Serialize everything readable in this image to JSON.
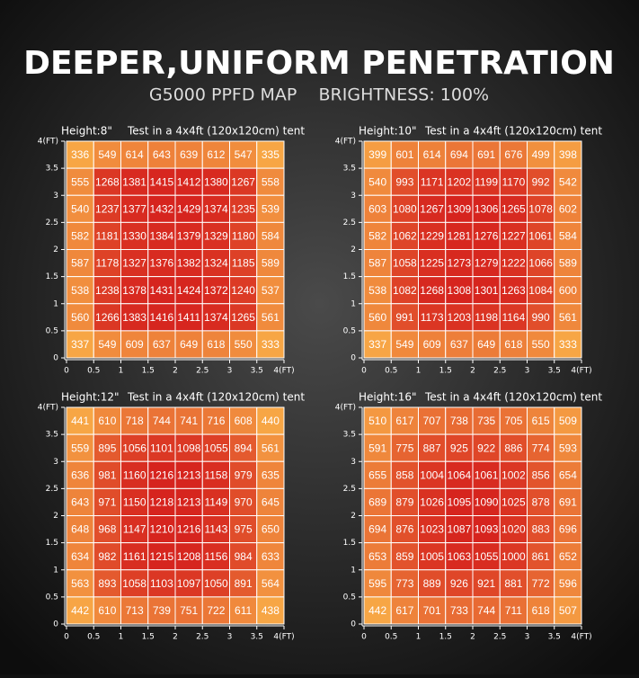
{
  "header": {
    "title": "DEEPER,UNIFORM PENETRATION",
    "subtitle": "G5000 PPFD MAP    BRIGHTNESS: 100%"
  },
  "chart_data": [
    {
      "type": "heatmap",
      "title": "Height:8\"",
      "subtitle": "Test in a 4x4ft (120x120cm) tent",
      "colormap": [
        "#f7a645",
        "#d6241e"
      ],
      "xlim": [
        0,
        4
      ],
      "ylim": [
        0,
        4
      ],
      "xticks": [
        0,
        0.5,
        1,
        1.5,
        2,
        2.5,
        3,
        3.5,
        {
          "value": 4,
          "label": "4(FT)"
        }
      ],
      "yticks": [
        0,
        0.5,
        1,
        1.5,
        2,
        2.5,
        3,
        3.5,
        {
          "value": 4,
          "label": "4(FT)"
        }
      ],
      "values": [
        [
          336,
          549,
          614,
          643,
          639,
          612,
          547,
          335
        ],
        [
          555,
          1268,
          1381,
          1415,
          1412,
          1380,
          1267,
          558
        ],
        [
          540,
          1237,
          1377,
          1432,
          1429,
          1374,
          1235,
          539
        ],
        [
          582,
          1181,
          1330,
          1384,
          1379,
          1329,
          1180,
          584
        ],
        [
          587,
          1178,
          1327,
          1376,
          1382,
          1324,
          1185,
          589
        ],
        [
          538,
          1238,
          1378,
          1431,
          1424,
          1372,
          1240,
          537
        ],
        [
          560,
          1266,
          1383,
          1416,
          1411,
          1374,
          1265,
          561
        ],
        [
          337,
          549,
          609,
          637,
          649,
          618,
          550,
          333
        ]
      ]
    },
    {
      "type": "heatmap",
      "title": "Height:10\"",
      "subtitle": "Test in a 4x4ft (120x120cm) tent",
      "colormap": [
        "#f7a645",
        "#d6241e"
      ],
      "xlim": [
        0,
        4
      ],
      "ylim": [
        0,
        4
      ],
      "xticks": [
        0,
        0.5,
        1,
        1.5,
        2,
        2.5,
        3,
        3.5,
        {
          "value": 4,
          "label": "4(FT)"
        }
      ],
      "yticks": [
        0,
        0.5,
        1,
        1.5,
        2,
        2.5,
        3,
        3.5,
        {
          "value": 4,
          "label": "4(FT)"
        }
      ],
      "values": [
        [
          399,
          601,
          614,
          694,
          691,
          676,
          499,
          398
        ],
        [
          540,
          993,
          1171,
          1202,
          1199,
          1170,
          992,
          542
        ],
        [
          603,
          1080,
          1267,
          1309,
          1306,
          1265,
          1078,
          602
        ],
        [
          582,
          1062,
          1229,
          1281,
          1276,
          1227,
          1061,
          584
        ],
        [
          587,
          1058,
          1225,
          1273,
          1279,
          1222,
          1066,
          589
        ],
        [
          538,
          1082,
          1268,
          1308,
          1301,
          1263,
          1084,
          600
        ],
        [
          560,
          991,
          1173,
          1203,
          1198,
          1164,
          990,
          561
        ],
        [
          337,
          549,
          609,
          637,
          649,
          618,
          550,
          333
        ]
      ]
    },
    {
      "type": "heatmap",
      "title": "Height:12\"",
      "subtitle": "Test in a 4x4ft (120x120cm) tent",
      "colormap": [
        "#f7a645",
        "#d6241e"
      ],
      "xlim": [
        0,
        4
      ],
      "ylim": [
        0,
        4
      ],
      "xticks": [
        0,
        0.5,
        1,
        1.5,
        2,
        2.5,
        3,
        3.5,
        {
          "value": 4,
          "label": "4(FT)"
        }
      ],
      "yticks": [
        0,
        0.5,
        1,
        1.5,
        2,
        2.5,
        3,
        3.5,
        {
          "value": 4,
          "label": "4(FT)"
        }
      ],
      "values": [
        [
          441,
          610,
          718,
          744,
          741,
          716,
          608,
          440
        ],
        [
          559,
          895,
          1056,
          1101,
          1098,
          1055,
          894,
          561
        ],
        [
          636,
          981,
          1160,
          1216,
          1213,
          1158,
          979,
          635
        ],
        [
          643,
          971,
          1150,
          1218,
          1213,
          1149,
          970,
          645
        ],
        [
          648,
          968,
          1147,
          1210,
          1216,
          1143,
          975,
          650
        ],
        [
          634,
          982,
          1161,
          1215,
          1208,
          1156,
          984,
          633
        ],
        [
          563,
          893,
          1058,
          1103,
          1097,
          1050,
          891,
          564
        ],
        [
          442,
          610,
          713,
          739,
          751,
          722,
          611,
          438
        ]
      ]
    },
    {
      "type": "heatmap",
      "title": "Height:16\"",
      "subtitle": "Test in a 4x4ft (120x120cm) tent",
      "colormap": [
        "#f7a645",
        "#d6241e"
      ],
      "xlim": [
        0,
        4
      ],
      "ylim": [
        0,
        4
      ],
      "xticks": [
        0,
        0.5,
        1,
        1.5,
        2,
        2.5,
        3,
        3.5,
        {
          "value": 4,
          "label": "4(FT)"
        }
      ],
      "yticks": [
        0,
        0.5,
        1,
        1.5,
        2,
        2.5,
        3,
        3.5,
        {
          "value": 4,
          "label": "4(FT)"
        }
      ],
      "values": [
        [
          510,
          617,
          707,
          738,
          735,
          705,
          615,
          509
        ],
        [
          591,
          775,
          887,
          925,
          922,
          886,
          774,
          593
        ],
        [
          655,
          858,
          1004,
          1064,
          1061,
          1002,
          856,
          654
        ],
        [
          689,
          879,
          1026,
          1095,
          1090,
          1025,
          878,
          691
        ],
        [
          694,
          876,
          1023,
          1087,
          1093,
          1020,
          883,
          696
        ],
        [
          653,
          859,
          1005,
          1063,
          1055,
          1000,
          861,
          652
        ],
        [
          595,
          773,
          889,
          926,
          921,
          881,
          772,
          596
        ],
        [
          442,
          617,
          701,
          733,
          744,
          711,
          618,
          507
        ]
      ]
    }
  ]
}
